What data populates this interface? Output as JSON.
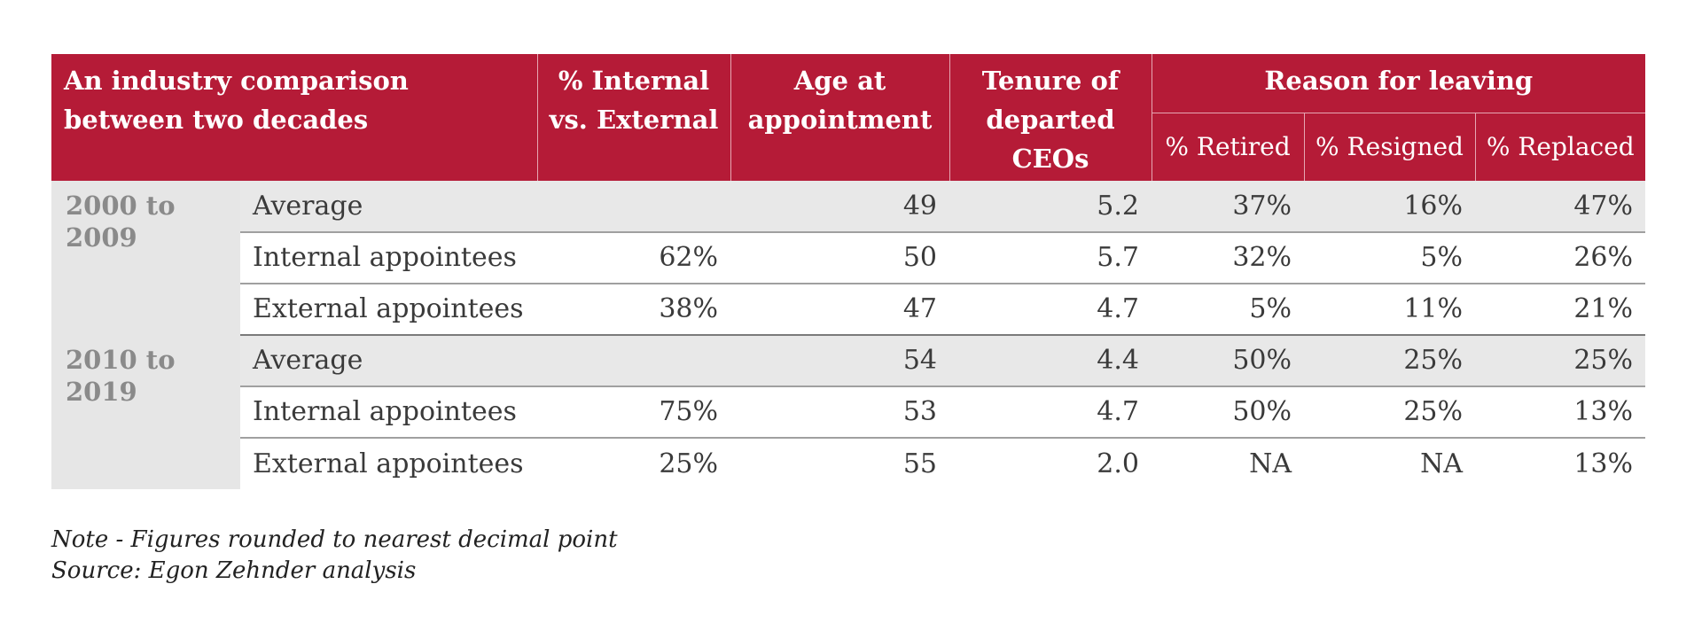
{
  "header": {
    "title": "An industry comparison between two decades",
    "col_internal": "% Internal vs. External",
    "col_age": "Age at appointment",
    "col_tenure": "Tenure of departed CEOs",
    "group_reason": "Reason for leaving",
    "col_retired": "% Retired",
    "col_resigned": "% Resigned",
    "col_replaced": "% Replaced"
  },
  "groups": [
    {
      "period": "2000 to 2009",
      "rows": [
        {
          "label": "Average",
          "internal": "",
          "age": "49",
          "tenure": "5.2",
          "retired": "37%",
          "resigned": "16%",
          "replaced": "47%"
        },
        {
          "label": "Internal appointees",
          "internal": "62%",
          "age": "50",
          "tenure": "5.7",
          "retired": "32%",
          "resigned": "5%",
          "replaced": "26%"
        },
        {
          "label": "External appointees",
          "internal": "38%",
          "age": "47",
          "tenure": "4.7",
          "retired": "5%",
          "resigned": "11%",
          "replaced": "21%"
        }
      ]
    },
    {
      "period": "2010 to 2019",
      "rows": [
        {
          "label": "Average",
          "internal": "",
          "age": "54",
          "tenure": "4.4",
          "retired": "50%",
          "resigned": "25%",
          "replaced": "25%"
        },
        {
          "label": "Internal appointees",
          "internal": "75%",
          "age": "53",
          "tenure": "4.7",
          "retired": "50%",
          "resigned": "25%",
          "replaced": "13%"
        },
        {
          "label": "External appointees",
          "internal": "25%",
          "age": "55",
          "tenure": "2.0",
          "retired": "NA",
          "resigned": "NA",
          "replaced": "13%"
        }
      ]
    }
  ],
  "notes": {
    "note": "Note - Figures rounded to nearest decimal point",
    "source": "Source: Egon Zehnder analysis"
  },
  "colors": {
    "header_bg": "#b51b37",
    "period_bg": "#e6e6e6",
    "average_row_bg": "#e8e8e8"
  }
}
